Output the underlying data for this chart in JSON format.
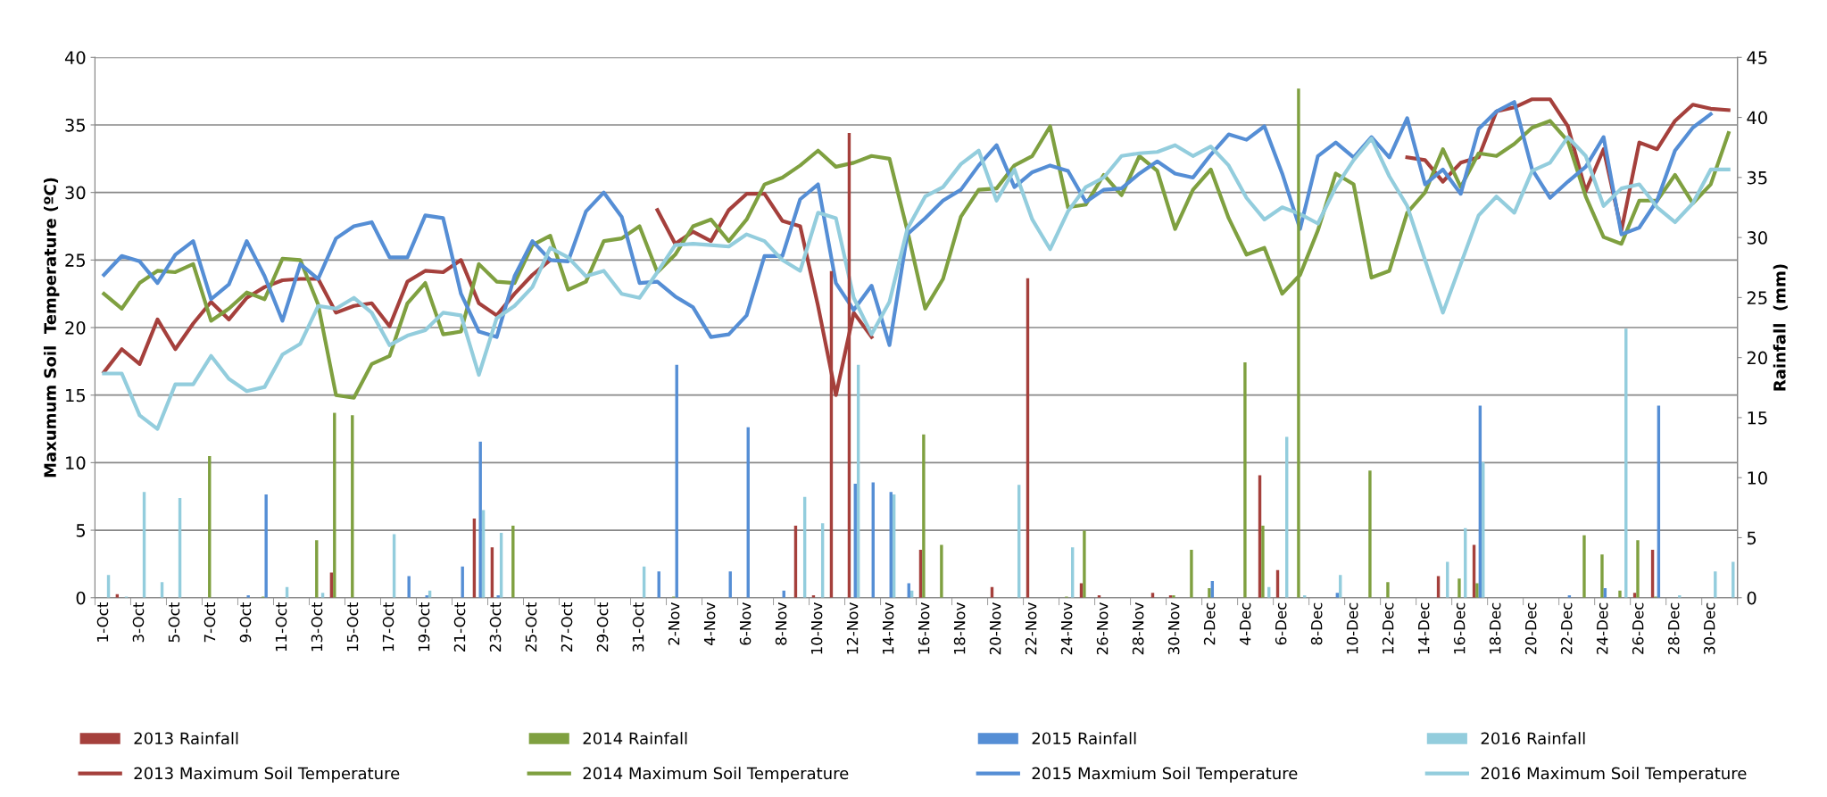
{
  "chart_data": {
    "type": "bar",
    "categories": [
      "1-Oct",
      null,
      "3-Oct",
      null,
      "5-Oct",
      null,
      "7-Oct",
      null,
      "9-Oct",
      null,
      "11-Oct",
      null,
      "13-Oct",
      null,
      "15-Oct",
      null,
      "17-Oct",
      null,
      "19-Oct",
      null,
      "21-Oct",
      null,
      "23-Oct",
      null,
      "25-Oct",
      null,
      "27-Oct",
      null,
      "29-Oct",
      null,
      "31-Oct",
      null,
      "2-Nov",
      null,
      "4-Nov",
      null,
      "6-Nov",
      null,
      "8-Nov",
      null,
      "10-Nov",
      null,
      "12-Nov",
      null,
      "14-Nov",
      null,
      "16-Nov",
      null,
      "18-Nov",
      null,
      "20-Nov",
      null,
      "22-Nov",
      null,
      "24-Nov",
      null,
      "26-Nov",
      null,
      "28-Nov",
      null,
      "30-Nov",
      null,
      "2-Dec",
      null,
      "4-Dec",
      null,
      "6-Dec",
      null,
      "8-Dec",
      null,
      "10-Dec",
      null,
      "12-Dec",
      null,
      "14-Dec",
      null,
      "16-Dec",
      null,
      "18-Dec",
      null,
      "20-Dec",
      null,
      "22-Dec",
      null,
      "24-Dec",
      null,
      "26-Dec",
      null,
      "28-Dec",
      null,
      "30-Dec",
      null
    ],
    "ylabel": "Maxumum Soil  Temperature (ºC)",
    "y2label": "Rainfall  (mm)",
    "ylim": [
      0,
      40
    ],
    "yticks": [
      0,
      5,
      10,
      15,
      20,
      25,
      30,
      35,
      40
    ],
    "y2lim": [
      0,
      45
    ],
    "y2ticks": [
      0,
      5,
      10,
      15,
      20,
      25,
      30,
      35,
      40,
      45
    ],
    "grid": "y",
    "legend": "bottom",
    "series": [
      {
        "name": "2013 Rainfall",
        "axis": "y2",
        "color": "#a5403c",
        "values": [
          0,
          0.3,
          0,
          0,
          0,
          0,
          0,
          0,
          0,
          0,
          0,
          0,
          0,
          2.1,
          0,
          0,
          0,
          0,
          0,
          0,
          0,
          6.6,
          4.2,
          0,
          0,
          0,
          0,
          0,
          0,
          0,
          0,
          0,
          0,
          0,
          0,
          0,
          0,
          0,
          0,
          6.0,
          0.2,
          27.2,
          38.7,
          0,
          0,
          0,
          4.0,
          0,
          0,
          0,
          0.9,
          0,
          26.6,
          0,
          0,
          1.2,
          0.2,
          0,
          0,
          0.4,
          0.2,
          0,
          0,
          0,
          0,
          10.2,
          2.3,
          0,
          0,
          0,
          0,
          0,
          0,
          0,
          0,
          1.8,
          0,
          4.4,
          0,
          0,
          0,
          0,
          0,
          0,
          0,
          0,
          0.4,
          4.0,
          0,
          0,
          0,
          0
        ]
      },
      {
        "name": "2013 Maximum Soil Temperature",
        "type": "line",
        "axis": "y",
        "color": "#a5403c",
        "values": [
          16.7,
          18.4,
          17.3,
          20.6,
          18.4,
          20.3,
          21.9,
          20.6,
          22.2,
          23.0,
          23.5,
          23.6,
          23.6,
          21.1,
          21.6,
          21.8,
          20.1,
          23.4,
          24.2,
          24.1,
          25.0,
          21.8,
          20.9,
          22.5,
          23.9,
          25.0,
          null,
          null,
          null,
          null,
          null,
          28.7,
          26.2,
          27.1,
          26.4,
          28.7,
          29.9,
          29.9,
          27.9,
          27.5,
          21.6,
          15.0,
          21.1,
          19.3,
          null,
          null,
          null,
          null,
          null,
          null,
          null,
          null,
          null,
          null,
          null,
          null,
          null,
          null,
          null,
          null,
          null,
          null,
          null,
          null,
          null,
          null,
          null,
          null,
          null,
          null,
          null,
          null,
          null,
          32.6,
          32.4,
          30.8,
          32.2,
          32.6,
          36.0,
          36.3,
          36.9,
          36.9,
          34.9,
          30.1,
          33.2,
          27.2,
          33.7,
          33.2,
          35.3,
          36.5,
          36.2,
          36.1
        ]
      },
      {
        "name": "2014 Rainfall",
        "axis": "y2",
        "color": "#7fa040",
        "values": [
          0,
          0,
          0,
          0,
          0,
          0,
          11.8,
          0,
          0,
          0.1,
          0,
          0,
          4.8,
          15.4,
          15.2,
          0,
          0,
          0,
          0,
          0,
          0,
          0,
          0,
          6.0,
          0,
          0,
          0,
          0,
          0,
          0,
          0,
          0,
          0.1,
          0,
          0,
          0,
          0,
          0,
          0,
          0,
          0,
          0,
          0,
          0,
          0,
          0,
          13.6,
          4.4,
          0,
          0,
          0,
          0,
          0,
          0,
          0.1,
          5.6,
          0,
          0,
          0,
          0,
          0.2,
          4.0,
          0.8,
          0,
          19.6,
          6.0,
          0,
          42.4,
          0,
          0,
          0,
          10.6,
          1.3,
          0,
          0,
          0,
          1.6,
          1.2,
          0,
          0,
          0,
          0,
          0,
          5.2,
          3.6,
          0.6,
          4.8,
          0.1,
          0,
          0,
          0,
          0
        ]
      },
      {
        "name": "2014 Maximum Soil Temperature",
        "type": "line",
        "axis": "y",
        "color": "#7fa040",
        "values": [
          22.5,
          21.4,
          23.3,
          24.2,
          24.1,
          24.7,
          20.5,
          21.4,
          22.6,
          22.1,
          25.1,
          25.0,
          21.7,
          15.0,
          14.8,
          17.3,
          17.9,
          21.8,
          23.3,
          19.5,
          19.7,
          24.7,
          23.4,
          23.3,
          26.1,
          26.8,
          22.8,
          23.4,
          26.4,
          26.6,
          27.5,
          24.1,
          25.4,
          27.5,
          28.0,
          26.4,
          28.0,
          30.6,
          31.1,
          32.0,
          33.1,
          31.9,
          32.2,
          32.7,
          32.5,
          27.2,
          21.4,
          23.6,
          28.2,
          30.2,
          30.3,
          32.0,
          32.7,
          34.9,
          28.9,
          29.1,
          31.3,
          29.8,
          32.7,
          31.6,
          27.3,
          30.2,
          31.7,
          28.1,
          25.4,
          25.9,
          22.5,
          23.9,
          27.2,
          31.4,
          30.6,
          23.7,
          24.2,
          28.5,
          30.0,
          33.2,
          30.4,
          32.9,
          32.7,
          33.6,
          34.8,
          35.3,
          33.8,
          29.7,
          26.7,
          26.2,
          29.4,
          29.4,
          31.3,
          29.2,
          30.6,
          34.4
        ]
      },
      {
        "name": "2015 Rainfall",
        "axis": "y2",
        "color": "#558ed5",
        "values": [
          0,
          0,
          0,
          0,
          0,
          0,
          0,
          0,
          0.2,
          8.6,
          0,
          0,
          0,
          0,
          0,
          0,
          0,
          1.8,
          0.2,
          0,
          2.6,
          13.0,
          0.2,
          0,
          0,
          0,
          0,
          0,
          0,
          0,
          0,
          2.2,
          19.4,
          0,
          0,
          2.2,
          14.2,
          0,
          0.6,
          0,
          0,
          0,
          9.5,
          9.6,
          8.8,
          1.2,
          0,
          0,
          0,
          0,
          0,
          0,
          0,
          0,
          0,
          0,
          0,
          0,
          0,
          0,
          0,
          0,
          1.4,
          0,
          0,
          0,
          0,
          0,
          0,
          0.4,
          0,
          0,
          0,
          0,
          0,
          0,
          0,
          16.0,
          0,
          0,
          0,
          0,
          0.2,
          0,
          0.8,
          0,
          0,
          16.0,
          0,
          0,
          0,
          0
        ]
      },
      {
        "name": "2015 Maxmium Soil Temperature",
        "type": "line",
        "axis": "y",
        "color": "#558ed5",
        "values": [
          23.9,
          25.3,
          24.9,
          23.3,
          25.4,
          26.4,
          22.1,
          23.2,
          26.4,
          23.8,
          20.5,
          24.7,
          23.6,
          26.6,
          27.5,
          27.8,
          25.2,
          25.2,
          28.3,
          28.1,
          22.5,
          19.7,
          19.3,
          23.8,
          26.4,
          25.0,
          24.9,
          28.6,
          30.0,
          28.2,
          23.3,
          23.4,
          22.3,
          21.5,
          19.3,
          19.5,
          20.9,
          25.3,
          25.3,
          29.5,
          30.6,
          23.3,
          21.3,
          23.1,
          18.7,
          26.9,
          28.1,
          29.4,
          30.2,
          32.0,
          33.5,
          30.4,
          31.5,
          32.0,
          31.6,
          29.3,
          30.2,
          30.3,
          31.4,
          32.3,
          31.4,
          31.1,
          32.8,
          34.3,
          33.9,
          34.9,
          31.4,
          27.3,
          32.7,
          33.7,
          32.6,
          34.1,
          32.6,
          35.5,
          30.6,
          31.7,
          29.9,
          34.7,
          36.0,
          36.7,
          31.7,
          29.6,
          30.8,
          31.9,
          34.1,
          26.9,
          27.4,
          29.4,
          33.1,
          34.8,
          35.8,
          null
        ]
      },
      {
        "name": "2016 Rainfall",
        "axis": "y2",
        "color": "#93cddd",
        "values": [
          1.9,
          0.1,
          8.8,
          1.3,
          8.3,
          0,
          0,
          0,
          0,
          0,
          0.9,
          0,
          0.4,
          0,
          0,
          0,
          5.3,
          0,
          0.6,
          0,
          0,
          7.3,
          5.4,
          0,
          0,
          0,
          0,
          0,
          0,
          0,
          2.6,
          0,
          0,
          0,
          0,
          0,
          0,
          0,
          0,
          8.4,
          6.2,
          0,
          19.4,
          0,
          8.6,
          0.6,
          0,
          0,
          0,
          0,
          0,
          9.4,
          0,
          0,
          4.2,
          0,
          0,
          0,
          0,
          0,
          0,
          0,
          0,
          0,
          0,
          0.9,
          13.4,
          0.2,
          0,
          1.9,
          0,
          0,
          0,
          0,
          0,
          3.0,
          5.8,
          11.3,
          0,
          0,
          0,
          0,
          0,
          0,
          0,
          22.4,
          0,
          0,
          0.2,
          0,
          2.2,
          3.0
        ]
      },
      {
        "name": "2016 Maximum Soil Temperature",
        "type": "line",
        "axis": "y",
        "color": "#93cddd",
        "values": [
          16.6,
          16.6,
          13.5,
          12.5,
          15.8,
          15.8,
          17.9,
          16.2,
          15.3,
          15.6,
          18.0,
          18.8,
          21.6,
          21.4,
          22.2,
          21.1,
          18.7,
          19.4,
          19.8,
          21.1,
          20.9,
          16.5,
          20.7,
          21.6,
          23.0,
          25.9,
          25.2,
          23.8,
          24.2,
          22.5,
          22.2,
          24.1,
          26.1,
          26.2,
          26.1,
          26.0,
          26.9,
          26.4,
          25.0,
          24.2,
          28.5,
          28.1,
          22.2,
          19.5,
          21.9,
          27.3,
          29.7,
          30.4,
          32.1,
          33.1,
          29.4,
          31.7,
          28.0,
          25.8,
          28.6,
          30.4,
          31.1,
          32.7,
          32.9,
          33.0,
          33.5,
          32.7,
          33.4,
          32.0,
          29.6,
          28.0,
          28.9,
          28.4,
          27.7,
          30.4,
          32.4,
          34.0,
          31.2,
          29.0,
          25.0,
          21.1,
          24.7,
          28.3,
          29.7,
          28.5,
          31.6,
          32.2,
          34.1,
          32.7,
          29.0,
          30.3,
          30.6,
          28.9,
          27.8,
          29.2,
          31.7,
          31.7
        ]
      }
    ]
  }
}
